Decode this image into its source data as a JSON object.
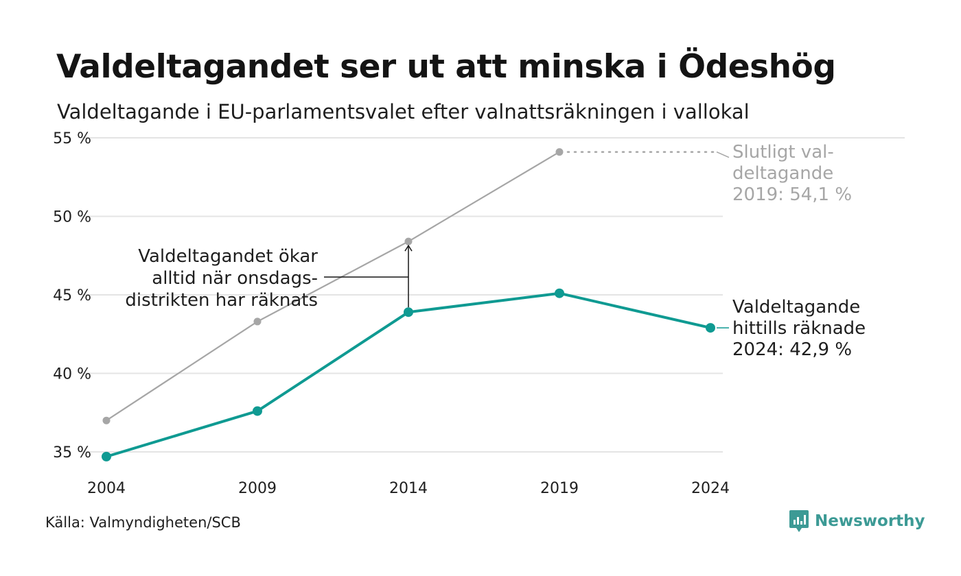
{
  "title": "Valdeltagandet ser ut att minska i Ödeshög",
  "subtitle": "Valdeltagande i EU-parlamentsvalet efter valnattsräkningen i vallokal",
  "source": "Källa: Valmyndigheten/SCB",
  "brand": {
    "name": "Newsworthy",
    "icon": "newsworthy-logo-icon",
    "color": "#3c9a95"
  },
  "colors": {
    "final_series": "#a6a6a6",
    "counted_series": "#0f9a92",
    "grid": "#e4e4e4",
    "text": "#1e1e1e"
  },
  "chart_data": {
    "type": "line",
    "x": [
      2004,
      2009,
      2014,
      2019,
      2024
    ],
    "ylim": [
      35,
      55
    ],
    "y_ticks": [
      35,
      40,
      45,
      50,
      55
    ],
    "y_tick_labels": [
      "35 %",
      "40 %",
      "45 %",
      "50 %",
      "55 %"
    ],
    "x_tick_labels": [
      "2004",
      "2009",
      "2014",
      "2019",
      "2024"
    ],
    "grid": true,
    "series": [
      {
        "key": "final",
        "values": [
          37.0,
          43.3,
          48.4,
          54.1,
          null
        ],
        "color": "#a6a6a6"
      },
      {
        "key": "counted",
        "values": [
          34.7,
          37.6,
          43.9,
          45.1,
          42.9
        ],
        "color": "#0f9a92"
      }
    ],
    "annotations": {
      "final_label": [
        "Slutligt val-",
        "deltagande",
        "2019: 54,1 %"
      ],
      "counted_label": [
        "Valdeltagande",
        "hittills räknade",
        "2024: 42,9 %"
      ],
      "wednesday_note": [
        "Valdeltagandet ökar",
        "alltid när onsdags-",
        "distrikten har räknats"
      ]
    }
  }
}
